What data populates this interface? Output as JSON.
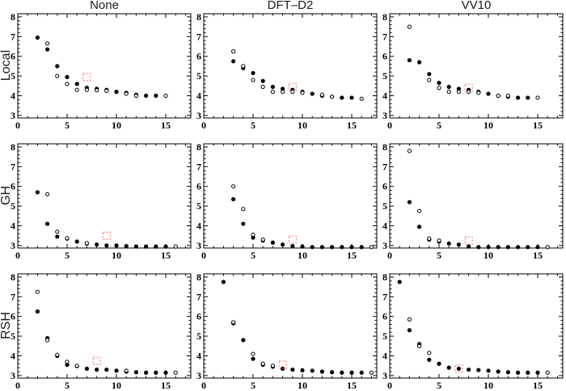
{
  "figure": {
    "column_titles": [
      "None",
      "DFT–D2",
      "VV10"
    ],
    "row_labels": [
      "Local",
      "GH",
      "RSH"
    ],
    "colors": {
      "marker": "#000000",
      "open_marker_fill": "#ffffff",
      "highlight": "#f08080",
      "frame": "#000000"
    }
  },
  "axes_defaults": {
    "xlim": [
      0,
      17.5
    ],
    "ylim": [
      2.7,
      8.2
    ],
    "xticks": [
      0,
      5,
      10,
      15
    ],
    "yticks": [
      3,
      4,
      5,
      6,
      7,
      8
    ],
    "x_minor_step": 1,
    "y_minor_step": 0.2
  },
  "chart_data": [
    {
      "type": "scatter",
      "row": "Local",
      "col": "None",
      "series": [
        {
          "name": "filled-circles",
          "marker": "filled-circle",
          "points": [
            [
              2,
              6.95
            ],
            [
              3,
              6.35
            ],
            [
              4,
              5.5
            ],
            [
              5,
              4.95
            ],
            [
              6,
              4.6
            ],
            [
              7,
              4.4
            ],
            [
              8,
              4.35
            ],
            [
              9,
              4.3
            ],
            [
              10,
              4.2
            ],
            [
              11,
              4.15
            ],
            [
              12,
              4.05
            ],
            [
              13,
              4.0
            ],
            [
              14,
              4.0
            ]
          ]
        },
        {
          "name": "open-circles",
          "marker": "open-circle",
          "points": [
            [
              3,
              6.65
            ],
            [
              4,
              5.0
            ],
            [
              5,
              4.6
            ],
            [
              6,
              4.3
            ],
            [
              7,
              4.3
            ],
            [
              8,
              4.28
            ],
            [
              9,
              4.25
            ],
            [
              11,
              4.1
            ],
            [
              12,
              4.0
            ],
            [
              15,
              4.0
            ]
          ]
        },
        {
          "name": "highlight",
          "marker": "red-dashed-square",
          "points": [
            [
              7,
              4.95
            ]
          ]
        }
      ]
    },
    {
      "type": "scatter",
      "row": "Local",
      "col": "DFT–D2",
      "series": [
        {
          "name": "filled-circles",
          "marker": "filled-circle",
          "points": [
            [
              3,
              5.75
            ],
            [
              4,
              5.4
            ],
            [
              5,
              5.15
            ],
            [
              6,
              4.75
            ],
            [
              7,
              4.45
            ],
            [
              8,
              4.35
            ],
            [
              9,
              4.3
            ],
            [
              10,
              4.2
            ],
            [
              11,
              4.1
            ],
            [
              12,
              4.0
            ],
            [
              13,
              3.95
            ],
            [
              14,
              3.9
            ],
            [
              15,
              3.9
            ]
          ]
        },
        {
          "name": "open-circles",
          "marker": "open-circle",
          "points": [
            [
              3,
              6.25
            ],
            [
              4,
              5.5
            ],
            [
              5,
              4.8
            ],
            [
              6,
              4.45
            ],
            [
              7,
              4.2
            ],
            [
              8,
              4.2
            ],
            [
              9,
              4.2
            ],
            [
              10,
              4.15
            ],
            [
              12,
              4.05
            ],
            [
              13,
              3.95
            ],
            [
              16,
              3.85
            ]
          ]
        },
        {
          "name": "highlight",
          "marker": "red-dashed-square",
          "points": [
            [
              9,
              4.45
            ]
          ]
        }
      ]
    },
    {
      "type": "scatter",
      "row": "Local",
      "col": "VV10",
      "series": [
        {
          "name": "filled-circles",
          "marker": "filled-circle",
          "points": [
            [
              2,
              5.8
            ],
            [
              3,
              5.7
            ],
            [
              4,
              5.1
            ],
            [
              5,
              4.65
            ],
            [
              6,
              4.45
            ],
            [
              7,
              4.35
            ],
            [
              8,
              4.3
            ],
            [
              9,
              4.2
            ],
            [
              10,
              4.1
            ],
            [
              11,
              4.0
            ],
            [
              12,
              3.95
            ],
            [
              13,
              3.9
            ],
            [
              14,
              3.9
            ]
          ]
        },
        {
          "name": "open-circles",
          "marker": "open-circle",
          "points": [
            [
              2,
              7.5
            ],
            [
              4,
              4.8
            ],
            [
              5,
              4.4
            ],
            [
              6,
              4.2
            ],
            [
              7,
              4.2
            ],
            [
              8,
              4.2
            ],
            [
              9,
              4.15
            ],
            [
              11,
              4.0
            ],
            [
              12,
              4.0
            ],
            [
              15,
              3.9
            ]
          ]
        },
        {
          "name": "highlight",
          "marker": "red-dashed-square",
          "points": [
            [
              8,
              4.4
            ]
          ]
        }
      ]
    },
    {
      "type": "scatter",
      "row": "GH",
      "col": "None",
      "series": [
        {
          "name": "filled-circles",
          "marker": "filled-circle",
          "points": [
            [
              2,
              5.7
            ],
            [
              3,
              4.1
            ],
            [
              4,
              3.45
            ],
            [
              5,
              3.35
            ],
            [
              6,
              3.2
            ],
            [
              7,
              3.1
            ],
            [
              8,
              3.05
            ],
            [
              9,
              3.0
            ],
            [
              10,
              3.0
            ],
            [
              11,
              2.97
            ],
            [
              12,
              2.95
            ],
            [
              13,
              2.95
            ],
            [
              14,
              2.95
            ],
            [
              15,
              2.95
            ]
          ]
        },
        {
          "name": "open-circles",
          "marker": "open-circle",
          "points": [
            [
              3,
              5.6
            ],
            [
              4,
              3.7
            ],
            [
              5,
              3.37
            ],
            [
              7,
              3.12
            ],
            [
              16,
              2.95
            ]
          ]
        },
        {
          "name": "highlight",
          "marker": "red-dashed-square",
          "points": [
            [
              9,
              3.5
            ]
          ]
        }
      ]
    },
    {
      "type": "scatter",
      "row": "GH",
      "col": "DFT–D2",
      "series": [
        {
          "name": "filled-circles",
          "marker": "filled-circle",
          "points": [
            [
              3,
              5.35
            ],
            [
              4,
              4.1
            ],
            [
              5,
              3.4
            ],
            [
              6,
              3.25
            ],
            [
              7,
              3.15
            ],
            [
              8,
              3.05
            ],
            [
              9,
              2.97
            ],
            [
              10,
              2.95
            ],
            [
              11,
              2.9
            ],
            [
              12,
              2.9
            ],
            [
              13,
              2.9
            ],
            [
              14,
              2.9
            ],
            [
              15,
              2.9
            ],
            [
              16,
              2.9
            ]
          ]
        },
        {
          "name": "open-circles",
          "marker": "open-circle",
          "points": [
            [
              3,
              6.0
            ],
            [
              4,
              4.85
            ],
            [
              5,
              3.55
            ],
            [
              6,
              3.3
            ],
            [
              17,
              2.9
            ]
          ]
        },
        {
          "name": "highlight",
          "marker": "red-dashed-square",
          "points": [
            [
              9,
              3.3
            ]
          ]
        }
      ]
    },
    {
      "type": "scatter",
      "row": "GH",
      "col": "VV10",
      "series": [
        {
          "name": "filled-circles",
          "marker": "filled-circle",
          "points": [
            [
              2,
              5.2
            ],
            [
              3,
              3.95
            ],
            [
              4,
              3.3
            ],
            [
              5,
              3.2
            ],
            [
              6,
              3.1
            ],
            [
              7,
              3.05
            ],
            [
              8,
              2.95
            ],
            [
              9,
              2.92
            ],
            [
              10,
              2.9
            ],
            [
              11,
              2.87
            ],
            [
              12,
              2.85
            ],
            [
              13,
              2.85
            ],
            [
              14,
              2.85
            ],
            [
              15,
              2.85
            ]
          ]
        },
        {
          "name": "open-circles",
          "marker": "open-circle",
          "points": [
            [
              2,
              7.8
            ],
            [
              3,
              4.75
            ],
            [
              4,
              3.35
            ],
            [
              5,
              3.25
            ],
            [
              16,
              2.9
            ]
          ]
        },
        {
          "name": "highlight",
          "marker": "red-dashed-square",
          "points": [
            [
              8,
              3.25
            ]
          ]
        }
      ]
    },
    {
      "type": "scatter",
      "row": "RSH",
      "col": "None",
      "series": [
        {
          "name": "filled-circles",
          "marker": "filled-circle",
          "points": [
            [
              2,
              6.25
            ],
            [
              3,
              4.9
            ],
            [
              4,
              4.0
            ],
            [
              5,
              3.55
            ],
            [
              6,
              3.48
            ],
            [
              7,
              3.35
            ],
            [
              8,
              3.3
            ],
            [
              9,
              3.3
            ],
            [
              10,
              3.25
            ],
            [
              11,
              3.2
            ],
            [
              12,
              3.17
            ],
            [
              13,
              3.15
            ],
            [
              14,
              3.15
            ],
            [
              15,
              3.15
            ]
          ]
        },
        {
          "name": "open-circles",
          "marker": "open-circle",
          "points": [
            [
              2,
              7.25
            ],
            [
              3,
              4.8
            ],
            [
              4,
              4.05
            ],
            [
              5,
              3.7
            ],
            [
              6,
              3.5
            ],
            [
              11,
              3.25
            ],
            [
              16,
              3.15
            ]
          ]
        },
        {
          "name": "highlight",
          "marker": "red-dashed-square",
          "points": [
            [
              8,
              3.75
            ]
          ]
        }
      ]
    },
    {
      "type": "scatter",
      "row": "RSH",
      "col": "DFT–D2",
      "series": [
        {
          "name": "filled-circles",
          "marker": "filled-circle",
          "points": [
            [
              2,
              7.75
            ],
            [
              3,
              5.65
            ],
            [
              4,
              4.8
            ],
            [
              5,
              3.85
            ],
            [
              6,
              3.55
            ],
            [
              7,
              3.45
            ],
            [
              8,
              3.35
            ],
            [
              9,
              3.3
            ],
            [
              10,
              3.27
            ],
            [
              11,
              3.25
            ],
            [
              12,
              3.2
            ],
            [
              13,
              3.17
            ],
            [
              14,
              3.15
            ],
            [
              15,
              3.15
            ],
            [
              16,
              3.15
            ]
          ]
        },
        {
          "name": "open-circles",
          "marker": "open-circle",
          "points": [
            [
              3,
              5.7
            ],
            [
              5,
              4.1
            ],
            [
              6,
              3.6
            ],
            [
              7,
              3.5
            ],
            [
              17,
              3.15
            ]
          ]
        },
        {
          "name": "highlight",
          "marker": "red-dashed-square",
          "points": [
            [
              8,
              3.55
            ]
          ]
        }
      ]
    },
    {
      "type": "scatter",
      "row": "RSH",
      "col": "VV10",
      "series": [
        {
          "name": "filled-circles",
          "marker": "filled-circle",
          "points": [
            [
              1,
              7.75
            ],
            [
              2,
              5.3
            ],
            [
              3,
              4.6
            ],
            [
              4,
              3.8
            ],
            [
              5,
              3.6
            ],
            [
              6,
              3.4
            ],
            [
              7,
              3.35
            ],
            [
              8,
              3.3
            ],
            [
              9,
              3.28
            ],
            [
              10,
              3.25
            ],
            [
              11,
              3.2
            ],
            [
              12,
              3.17
            ],
            [
              13,
              3.15
            ],
            [
              14,
              3.15
            ],
            [
              15,
              3.15
            ]
          ]
        },
        {
          "name": "open-circles",
          "marker": "open-circle",
          "points": [
            [
              2,
              5.85
            ],
            [
              3,
              4.5
            ],
            [
              4,
              4.15
            ],
            [
              16,
              3.15
            ]
          ]
        },
        {
          "name": "highlight",
          "marker": "red-dashed-square",
          "points": [
            [
              7,
              3.35
            ]
          ]
        }
      ]
    }
  ]
}
